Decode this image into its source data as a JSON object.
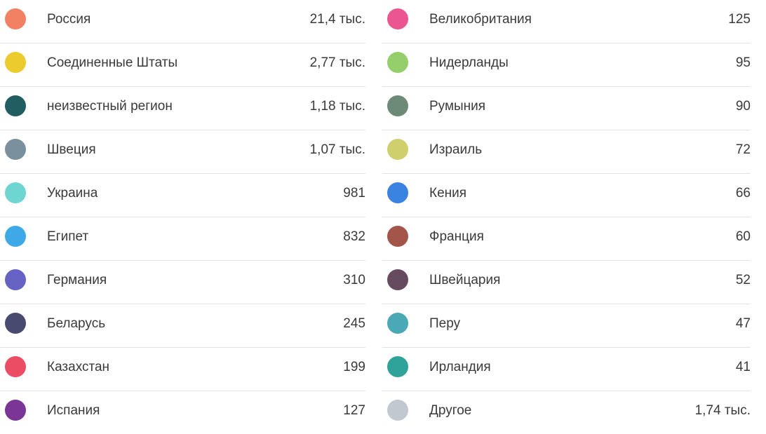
{
  "legend": {
    "left": [
      {
        "label": "Россия",
        "value": "21,4 тыс.",
        "color": "#f28063"
      },
      {
        "label": "Соединенные Штаты",
        "value": "2,77 тыс.",
        "color": "#eccb2e"
      },
      {
        "label": "неизвестный регион",
        "value": "1,18 тыс.",
        "color": "#215e62"
      },
      {
        "label": "Швеция",
        "value": "1,07 тыс.",
        "color": "#7b909f"
      },
      {
        "label": "Украина",
        "value": "981",
        "color": "#6fd5d1"
      },
      {
        "label": "Египет",
        "value": "832",
        "color": "#3da9e7"
      },
      {
        "label": "Германия",
        "value": "310",
        "color": "#6763c4"
      },
      {
        "label": "Беларусь",
        "value": "245",
        "color": "#484b6f"
      },
      {
        "label": "Казахстан",
        "value": "199",
        "color": "#eb4d64"
      },
      {
        "label": "Испания",
        "value": "127",
        "color": "#7a3596"
      }
    ],
    "right": [
      {
        "label": "Великобритания",
        "value": "125",
        "color": "#eb5692"
      },
      {
        "label": "Нидерланды",
        "value": "95",
        "color": "#95cf6a"
      },
      {
        "label": "Румыния",
        "value": "90",
        "color": "#6d8a76"
      },
      {
        "label": "Израиль",
        "value": "72",
        "color": "#cfcf6c"
      },
      {
        "label": "Кения",
        "value": "66",
        "color": "#3a83e0"
      },
      {
        "label": "Франция",
        "value": "60",
        "color": "#a3554a"
      },
      {
        "label": "Швейцария",
        "value": "52",
        "color": "#654b5d"
      },
      {
        "label": "Перу",
        "value": "47",
        "color": "#4ba9b5"
      },
      {
        "label": "Ирландия",
        "value": "41",
        "color": "#2fa39a"
      },
      {
        "label": "Другое",
        "value": "1,74 тыс.",
        "color": "#c2c8cf"
      }
    ]
  }
}
